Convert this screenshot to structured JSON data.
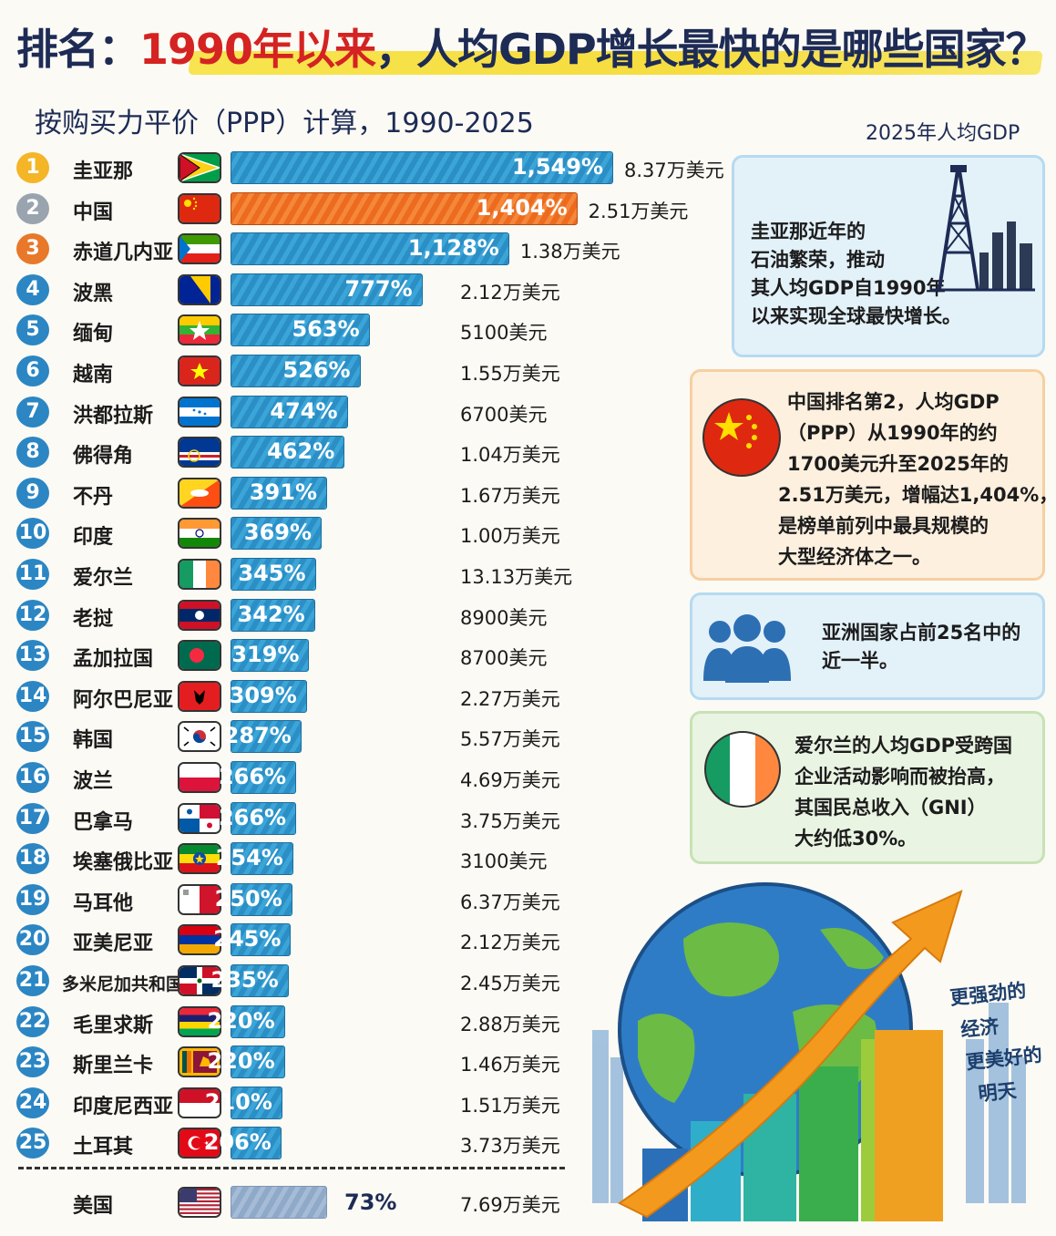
{
  "title": {
    "part1": "排名：",
    "part2": "1990年以来",
    "part3": "，人均GDP增长最快的是哪些国家？"
  },
  "subtitle": "按购买力平价（PPP）计算，1990-2025",
  "column_header": "2025年人均GDP",
  "chart_data": {
    "type": "bar",
    "orientation": "horizontal",
    "title": "排名：1990年以来，人均GDP增长最快的是哪些国家？",
    "subtitle": "按购买力平价（PPP）计算，1990-2025",
    "value_unit": "%",
    "series": [
      {
        "rank": "1",
        "country": "圭亚那",
        "flag": "guyana",
        "growth": 1549,
        "growth_label": "1,549%",
        "gdp_2025": "8.37万美元"
      },
      {
        "rank": "2",
        "country": "中国",
        "flag": "china",
        "growth": 1404,
        "growth_label": "1,404%",
        "gdp_2025": "2.51万美元",
        "highlight": true
      },
      {
        "rank": "3",
        "country": "赤道几内亚",
        "flag": "equatorial-guinea",
        "growth": 1128,
        "growth_label": "1,128%",
        "gdp_2025": "1.38万美元"
      },
      {
        "rank": "4",
        "country": "波黑",
        "flag": "bosnia",
        "growth": 777,
        "growth_label": "777%",
        "gdp_2025": "2.12万美元"
      },
      {
        "rank": "5",
        "country": "缅甸",
        "flag": "myanmar",
        "growth": 563,
        "growth_label": "563%",
        "gdp_2025": "5100美元"
      },
      {
        "rank": "6",
        "country": "越南",
        "flag": "vietnam",
        "growth": 526,
        "growth_label": "526%",
        "gdp_2025": "1.55万美元"
      },
      {
        "rank": "7",
        "country": "洪都拉斯",
        "flag": "honduras",
        "growth": 474,
        "growth_label": "474%",
        "gdp_2025": "6700美元"
      },
      {
        "rank": "8",
        "country": "佛得角",
        "flag": "cape-verde",
        "growth": 462,
        "growth_label": "462%",
        "gdp_2025": "1.04万美元"
      },
      {
        "rank": "9",
        "country": "不丹",
        "flag": "bhutan",
        "growth": 391,
        "growth_label": "391%",
        "gdp_2025": "1.67万美元"
      },
      {
        "rank": "10",
        "country": "印度",
        "flag": "india",
        "growth": 369,
        "growth_label": "369%",
        "gdp_2025": "1.00万美元"
      },
      {
        "rank": "11",
        "country": "爱尔兰",
        "flag": "ireland",
        "growth": 345,
        "growth_label": "345%",
        "gdp_2025": "13.13万美元"
      },
      {
        "rank": "12",
        "country": "老挝",
        "flag": "laos",
        "growth": 342,
        "growth_label": "342%",
        "gdp_2025": "8900美元"
      },
      {
        "rank": "13",
        "country": "孟加拉国",
        "flag": "bangladesh",
        "growth": 319,
        "growth_label": "319%",
        "gdp_2025": "8700美元"
      },
      {
        "rank": "14",
        "country": "阿尔巴尼亚",
        "flag": "albania",
        "growth": 309,
        "growth_label": "309%",
        "gdp_2025": "2.27万美元"
      },
      {
        "rank": "15",
        "country": "韩国",
        "flag": "south-korea",
        "growth": 287,
        "growth_label": "287%",
        "gdp_2025": "5.57万美元"
      },
      {
        "rank": "16",
        "country": "波兰",
        "flag": "poland",
        "growth": 266,
        "growth_label": "266%",
        "gdp_2025": "4.69万美元"
      },
      {
        "rank": "17",
        "country": "巴拿马",
        "flag": "panama",
        "growth": 266,
        "growth_label": "266%",
        "gdp_2025": "3.75万美元"
      },
      {
        "rank": "18",
        "country": "埃塞俄比亚",
        "flag": "ethiopia",
        "growth": 254,
        "growth_label": "254%",
        "gdp_2025": "3100美元"
      },
      {
        "rank": "19",
        "country": "马耳他",
        "flag": "malta",
        "growth": 250,
        "growth_label": "250%",
        "gdp_2025": "6.37万美元"
      },
      {
        "rank": "20",
        "country": "亚美尼亚",
        "flag": "armenia",
        "growth": 245,
        "growth_label": "245%",
        "gdp_2025": "2.12万美元"
      },
      {
        "rank": "21",
        "country": "多米尼加共和国",
        "flag": "dominican-republic",
        "growth": 235,
        "growth_label": "235%",
        "gdp_2025": "2.45万美元"
      },
      {
        "rank": "22",
        "country": "毛里求斯",
        "flag": "mauritius",
        "growth": 220,
        "growth_label": "220%",
        "gdp_2025": "2.88万美元"
      },
      {
        "rank": "23",
        "country": "斯里兰卡",
        "flag": "sri-lanka",
        "growth": 220,
        "growth_label": "220%",
        "gdp_2025": "1.46万美元"
      },
      {
        "rank": "24",
        "country": "印度尼西亚",
        "flag": "indonesia",
        "growth": 210,
        "growth_label": "210%",
        "gdp_2025": "1.51万美元"
      },
      {
        "rank": "25",
        "country": "土耳其",
        "flag": "turkey",
        "growth": 206,
        "growth_label": "206%",
        "gdp_2025": "3.73万美元"
      }
    ],
    "reference": {
      "country": "美国",
      "flag": "usa",
      "growth": 73,
      "growth_label": "73%",
      "gdp_2025": "7.69万美元"
    }
  },
  "notes": {
    "guyana": [
      "圭亚那近年的",
      "石油繁荣，推动",
      "其人均GDP自1990年",
      "以来实现全球最快增长。"
    ],
    "china": [
      "中国排名第2，人均GDP",
      "（PPP）从1990年的约",
      "1700美元升至2025年的",
      "2.51万美元，增幅达1,404%，",
      "是榜单前列中最具规模的",
      "大型经济体之一。"
    ],
    "asia": [
      "亚洲国家占前25名中的",
      "近一半。"
    ],
    "ireland": [
      "爱尔兰的人均GDP受跨国",
      "企业活动影响而被抬高，",
      "其国民总收入（GNI）",
      "大约低30%。"
    ]
  },
  "illustration_caption": [
    "更强劲的",
    "经济",
    "更美好的",
    "明天"
  ],
  "colors": {
    "bar_blue": "#2b8fc6",
    "bar_china": "#ec6b1f",
    "bar_usa": "#8fa9c8",
    "title_red": "#d42322",
    "title_navy": "#1d2b55"
  }
}
